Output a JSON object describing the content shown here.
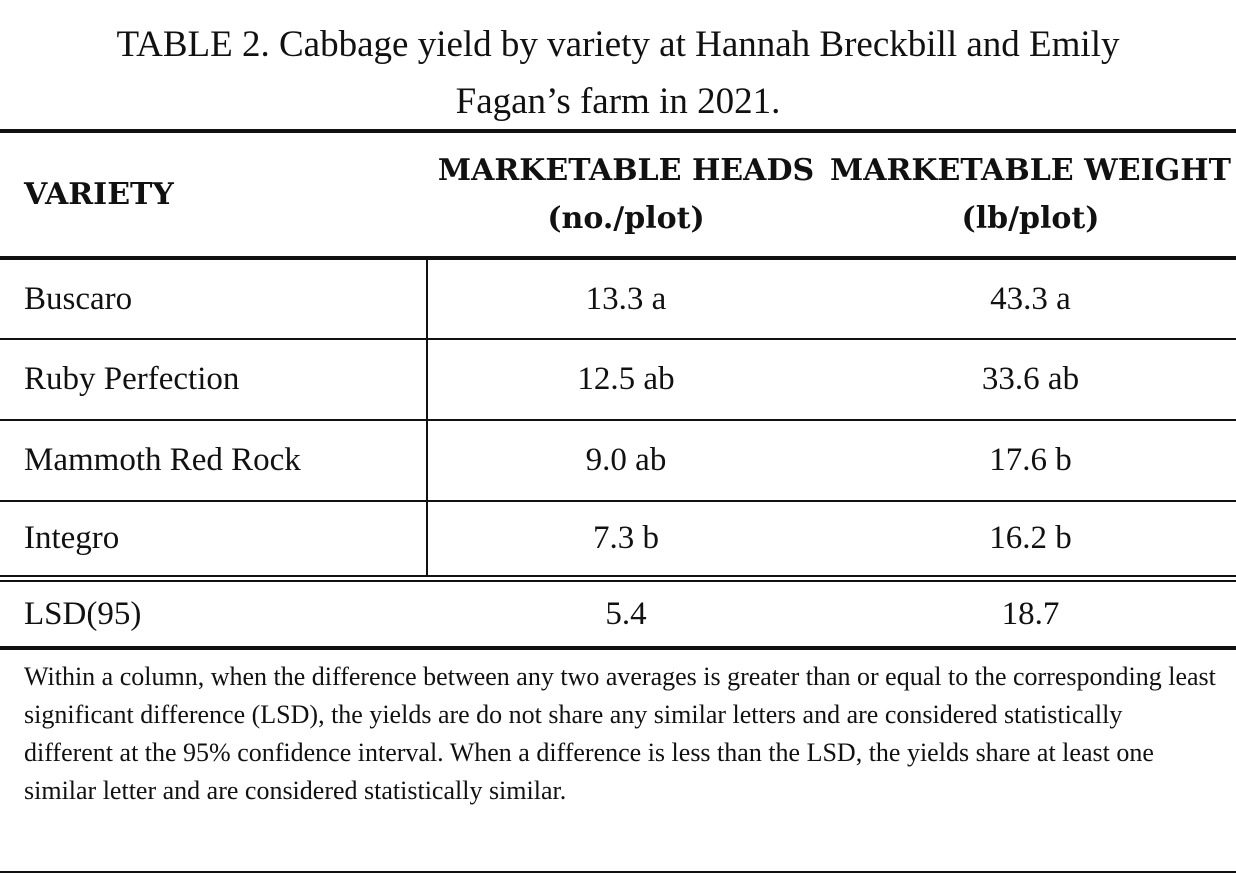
{
  "title": "TABLE 2. Cabbage yield by variety at Hannah Breckbill and Emily Fagan’s farm in 2021.",
  "table": {
    "headers": [
      "VARIETY",
      "MARKETABLE HEADS (no./plot)",
      "MARKETABLE WEIGHT (lb/plot)"
    ],
    "rows": [
      [
        "Buscaro",
        "13.3 a",
        "43.3 a"
      ],
      [
        "Ruby Perfection",
        "12.5 ab",
        "33.6 ab"
      ],
      [
        "Mammoth Red Rock",
        "9.0 ab",
        "17.6 b"
      ],
      [
        "Integro",
        "7.3 b",
        "16.2 b"
      ]
    ],
    "lsd": [
      "LSD(95)",
      5.4,
      18.7
    ]
  },
  "note": "Within a column, when the difference between any two averages is greater than or equal to the corresponding least significant difference (LSD), the yields are do not share any similar letters and are considered statistically different at the 95% confidence interval. When a difference is less than the LSD, the yields share at least one similar letter and are considered statistically similar."
}
